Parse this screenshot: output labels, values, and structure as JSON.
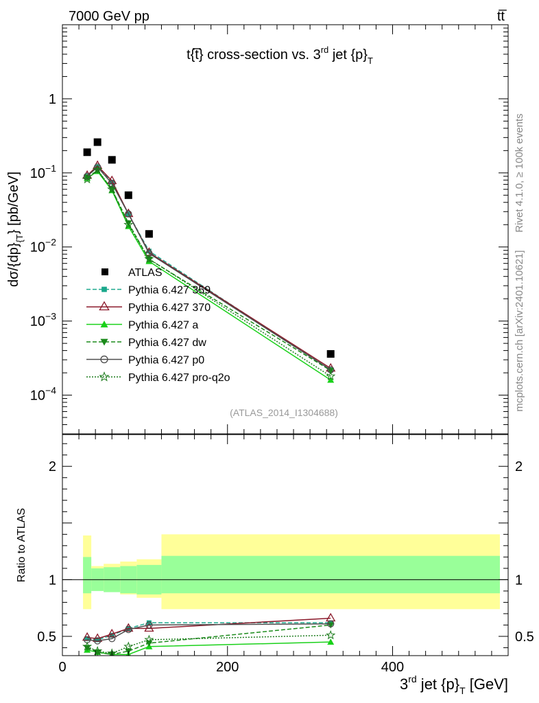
{
  "header": {
    "energy_label": "7000 GeV pp",
    "process_label": "tt̅"
  },
  "side_text": {
    "rivet": "Rivet 4.1.0, ≥ 100k events",
    "mcplots": "mcplots.cern.ch [arXiv:2401.10621]"
  },
  "chart_data": [
    {
      "type": "scatter",
      "panel": "main",
      "title_main": "t{t̅} cross-section vs. 3",
      "title_sup": "rd",
      "title_rest": " jet {p}",
      "title_sub": "T",
      "ylabel_main": "dσ/{dp}",
      "ylabel_sub": "{T",
      "ylabel_rest": "} [pb/GeV]",
      "yscale": "log",
      "ylim": [
        3e-05,
        10
      ],
      "xlim": [
        0,
        540
      ],
      "y_ticks": [
        {
          "value": 1,
          "mantissa": "1",
          "exp": ""
        },
        {
          "value": 0.1,
          "mantissa": "10",
          "exp": "−1"
        },
        {
          "value": 0.01,
          "mantissa": "10",
          "exp": "−2"
        },
        {
          "value": 0.001,
          "mantissa": "10",
          "exp": "−3"
        },
        {
          "value": 0.0001,
          "mantissa": "10",
          "exp": "−4"
        }
      ],
      "analysis_tag": "(ATLAS_2014_I1304688)",
      "data": {
        "name": "ATLAS",
        "x": [
          30,
          42.5,
          60,
          80,
          105,
          325
        ],
        "y": [
          0.19,
          0.26,
          0.15,
          0.05,
          0.015,
          0.00036
        ]
      },
      "series": [
        {
          "name": "Pythia 6.427 359",
          "color": "#1aa88c",
          "dash": "6,3",
          "marker": "square",
          "x": [
            30,
            42.5,
            60,
            80,
            105,
            325
          ],
          "y": [
            0.09,
            0.12,
            0.075,
            0.028,
            0.0088,
            0.00022
          ]
        },
        {
          "name": "Pythia 6.427 370",
          "color": "#8b1a2b",
          "dash": "",
          "marker": "open-triangle",
          "x": [
            30,
            42.5,
            60,
            80,
            105,
            325
          ],
          "y": [
            0.092,
            0.125,
            0.078,
            0.028,
            0.0084,
            0.00023
          ]
        },
        {
          "name": "Pythia 6.427 a",
          "color": "#19d119",
          "dash": "",
          "marker": "triangle",
          "x": [
            30,
            42.5,
            60,
            80,
            105,
            325
          ],
          "y": [
            0.085,
            0.105,
            0.058,
            0.019,
            0.0064,
            0.00016
          ]
        },
        {
          "name": "Pythia 6.427 dw",
          "color": "#1a8a1a",
          "dash": "6,3",
          "marker": "triangle-down",
          "x": [
            30,
            42.5,
            60,
            80,
            105,
            325
          ],
          "y": [
            0.087,
            0.108,
            0.06,
            0.021,
            0.0068,
            0.000215
          ]
        },
        {
          "name": "Pythia 6.427 p0",
          "color": "#4d4d4d",
          "dash": "",
          "marker": "open-circle",
          "x": [
            30,
            42.5,
            60,
            80,
            105,
            325
          ],
          "y": [
            0.09,
            0.12,
            0.072,
            0.028,
            0.0082,
            0.00022
          ]
        },
        {
          "name": "Pythia 6.427 pro-q2o",
          "color": "#1a7a1a",
          "dash": "2,2",
          "marker": "star",
          "x": [
            30,
            42.5,
            60,
            80,
            105,
            325
          ],
          "y": [
            0.082,
            0.11,
            0.06,
            0.02,
            0.0069,
            0.00018
          ]
        }
      ]
    },
    {
      "type": "line",
      "panel": "ratio",
      "ylabel": "Ratio to ATLAS",
      "xlabel_main": "3",
      "xlabel_sup": "rd",
      "xlabel_rest": " jet {p}",
      "xlabel_sub": "T",
      "xlabel_unit": " [GeV]",
      "ylim": [
        0.33,
        2.28
      ],
      "xlim": [
        0,
        540
      ],
      "x_ticks": [
        {
          "value": 0,
          "label": "0"
        },
        {
          "value": 200,
          "label": "200"
        },
        {
          "value": 400,
          "label": "400"
        }
      ],
      "y_ticks": [
        {
          "value": 0.5,
          "label": "0.5"
        },
        {
          "value": 1,
          "label": "1"
        },
        {
          "value": 2,
          "label": "2"
        }
      ],
      "bands": {
        "bins": [
          25,
          35,
          50,
          70,
          90,
          120,
          530
        ],
        "inner_up": [
          1.2,
          1.1,
          1.11,
          1.12,
          1.13,
          1.21
        ],
        "inner_down": [
          0.88,
          0.9,
          0.89,
          0.88,
          0.87,
          0.88
        ],
        "outer_up": [
          1.39,
          1.12,
          1.14,
          1.16,
          1.18,
          1.4
        ],
        "outer_down": [
          0.74,
          0.93,
          0.9,
          0.87,
          0.84,
          0.74
        ]
      },
      "series": [
        {
          "name": "Pythia 6.427 359",
          "x": [
            30,
            42.5,
            60,
            80,
            105,
            325
          ],
          "y": [
            0.48,
            0.47,
            0.51,
            0.57,
            0.62,
            0.62
          ]
        },
        {
          "name": "Pythia 6.427 370",
          "x": [
            30,
            42.5,
            60,
            80,
            105,
            325
          ],
          "y": [
            0.49,
            0.48,
            0.52,
            0.57,
            0.57,
            0.66
          ]
        },
        {
          "name": "Pythia 6.427 a",
          "x": [
            30,
            42.5,
            60,
            80,
            105,
            325
          ],
          "y": [
            0.38,
            0.36,
            0.34,
            0.34,
            0.41,
            0.45
          ]
        },
        {
          "name": "Pythia 6.427 dw",
          "x": [
            30,
            42.5,
            60,
            80,
            105,
            325
          ],
          "y": [
            0.4,
            0.36,
            0.34,
            0.37,
            0.44,
            0.6
          ]
        },
        {
          "name": "Pythia 6.427 p0",
          "x": [
            30,
            42.5,
            60,
            80,
            105,
            325
          ],
          "y": [
            0.47,
            0.46,
            0.48,
            0.56,
            0.6,
            0.61
          ]
        },
        {
          "name": "Pythia 6.427 pro-q2o",
          "x": [
            30,
            42.5,
            60,
            80,
            105,
            325
          ],
          "y": [
            0.41,
            0.37,
            0.35,
            0.41,
            0.47,
            0.51
          ]
        }
      ]
    }
  ]
}
